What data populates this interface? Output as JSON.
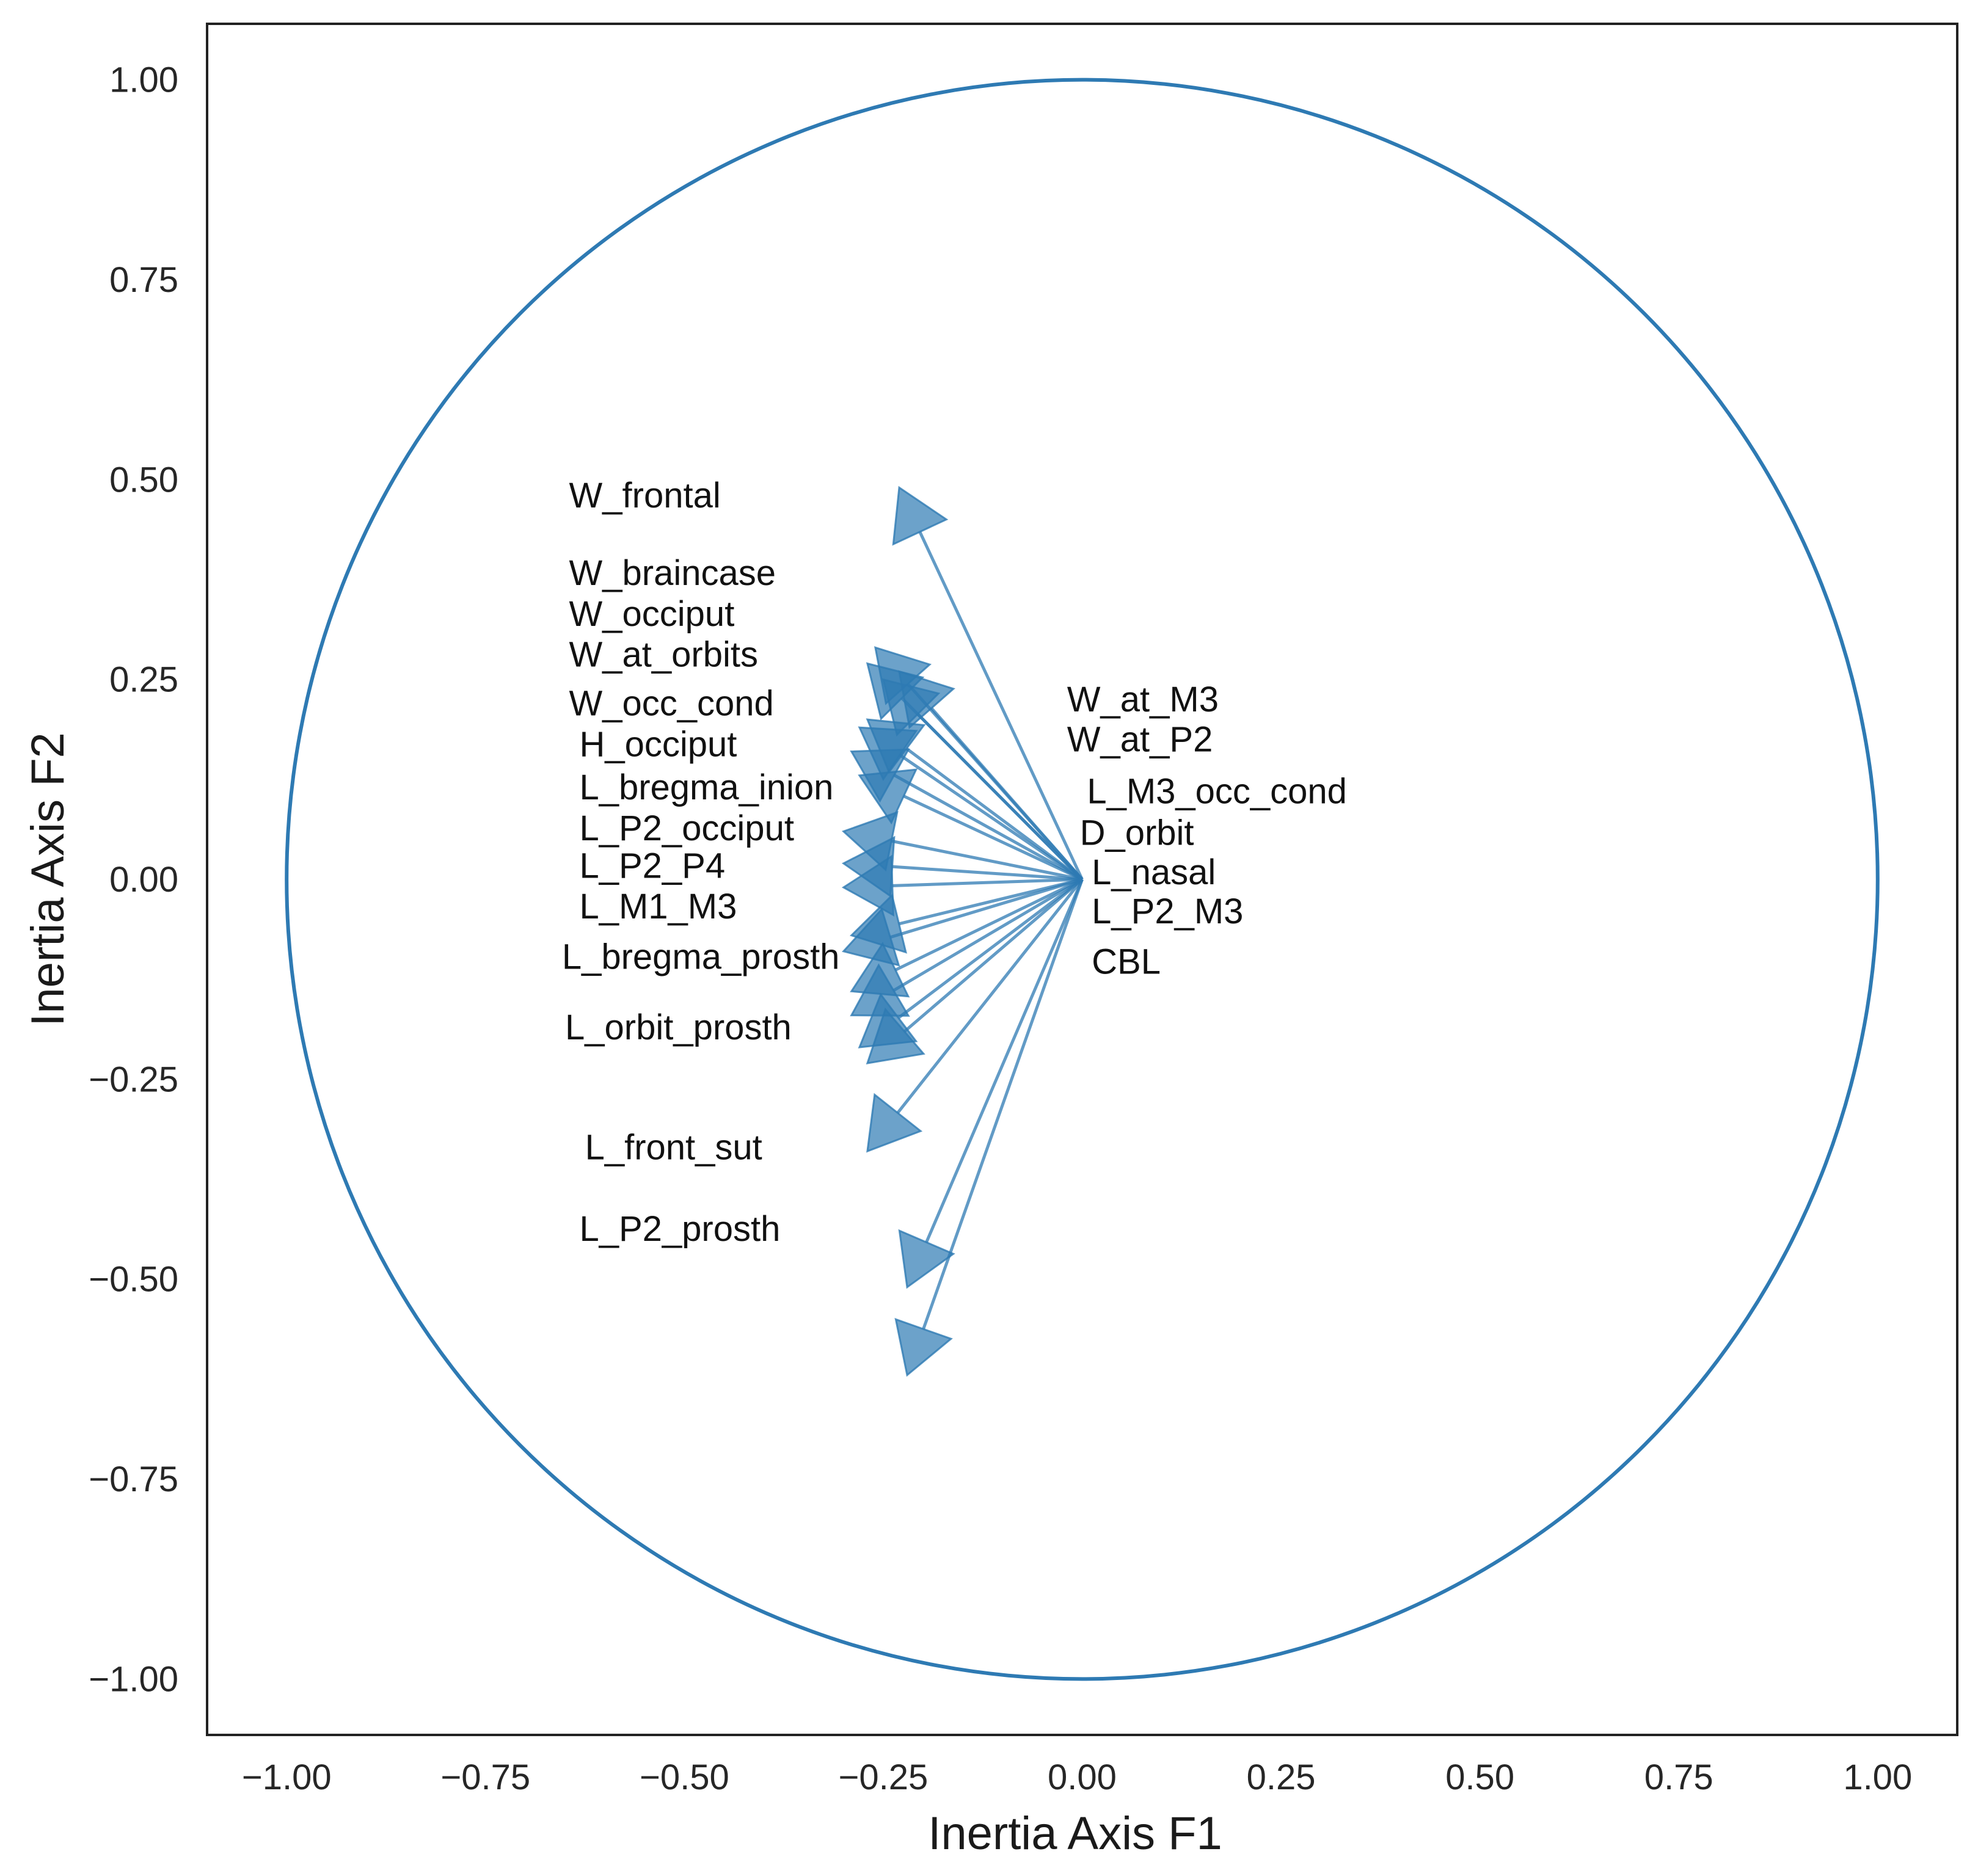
{
  "chart_data": {
    "type": "scatter",
    "subtype": "correlation-circle",
    "title": "",
    "xlabel": "Inertia Axis F1",
    "ylabel": "Inertia Axis F2",
    "xlim": [
      -1.1,
      1.1
    ],
    "ylim": [
      -1.07,
      1.07
    ],
    "xticks": [
      -1.0,
      -0.75,
      -0.5,
      -0.25,
      0.0,
      0.25,
      0.5,
      0.75,
      1.0
    ],
    "yticks": [
      1.0,
      0.75,
      0.5,
      0.25,
      0.0,
      -0.25,
      -0.5,
      -0.75,
      -1.0
    ],
    "xtick_labels": [
      "−1.00",
      "−0.75",
      "−0.50",
      "−0.25",
      "0.00",
      "0.25",
      "0.50",
      "0.75",
      "1.00"
    ],
    "ytick_labels": [
      "1.00",
      "0.75",
      "0.50",
      "0.25",
      "0.00",
      "−0.25",
      "−0.50",
      "−0.75",
      "−1.00"
    ],
    "grid": false,
    "unit_circle": true,
    "color": "#2e7ab3",
    "vectors": [
      {
        "name": "W_frontal",
        "x": -0.23,
        "y": 0.49
      },
      {
        "name": "W_braincase",
        "x": -0.26,
        "y": 0.29
      },
      {
        "name": "W_occiput",
        "x": -0.27,
        "y": 0.27
      },
      {
        "name": "W_at_orbits",
        "x": -0.25,
        "y": 0.25
      },
      {
        "name": "W_occ_cond",
        "x": -0.28,
        "y": 0.19
      },
      {
        "name": "H_occiput",
        "x": -0.29,
        "y": 0.16
      },
      {
        "name": "L_bregma_inion",
        "x": -0.28,
        "y": 0.13
      },
      {
        "name": "L_P2_occiput",
        "x": -0.3,
        "y": 0.06
      },
      {
        "name": "L_P2_P4",
        "x": -0.3,
        "y": 0.02
      },
      {
        "name": "L_M1_M3",
        "x": -0.3,
        "y": -0.01
      },
      {
        "name": "L_bregma_prosth",
        "x": -0.3,
        "y": -0.09
      },
      {
        "name": "L_orbit_prosth",
        "x": -0.29,
        "y": -0.17
      },
      {
        "name": "L_front_sut",
        "x": -0.27,
        "y": -0.34
      },
      {
        "name": "L_P2_prosth",
        "x": -0.22,
        "y": -0.51
      },
      {
        "name": "W_at_M3",
        "x": -0.29,
        "y": -0.14
      },
      {
        "name": "W_at_P2",
        "x": -0.28,
        "y": -0.21
      },
      {
        "name": "L_M3_occ_cond",
        "x": -0.27,
        "y": -0.23
      },
      {
        "name": "D_orbit",
        "x": -0.23,
        "y": 0.26
      },
      {
        "name": "L_nasal",
        "x": -0.27,
        "y": 0.2
      },
      {
        "name": "L_P2_M3",
        "x": -0.29,
        "y": -0.07
      },
      {
        "name": "CBL",
        "x": -0.22,
        "y": -0.62
      }
    ],
    "labels": [
      {
        "text": "W_frontal",
        "x": -0.645,
        "y": 0.465,
        "style": "sans"
      },
      {
        "text": "W_braincase",
        "x": -0.645,
        "y": 0.368,
        "style": "sans"
      },
      {
        "text": "W_occiput",
        "x": -0.645,
        "y": 0.317,
        "style": "sans"
      },
      {
        "text": "W_at_orbits",
        "x": -0.645,
        "y": 0.266,
        "style": "sans"
      },
      {
        "text": "W_occ_cond",
        "x": -0.645,
        "y": 0.205,
        "style": "sans"
      },
      {
        "text": "H_occiput",
        "x": -0.632,
        "y": 0.154,
        "style": "sans"
      },
      {
        "text": "L_bregma_inion",
        "x": -0.632,
        "y": 0.1,
        "style": "sans"
      },
      {
        "text": "L_P2_occiput",
        "x": -0.632,
        "y": 0.049,
        "style": "sans"
      },
      {
        "text": "L_P2_P4",
        "x": -0.632,
        "y": 0.002,
        "style": "sans"
      },
      {
        "text": "L_M1_M3",
        "x": -0.632,
        "y": -0.049,
        "style": "sans"
      },
      {
        "text": "L_bregma_prosth",
        "x": -0.654,
        "y": -0.112,
        "style": "sans"
      },
      {
        "text": "L_orbit_prosth",
        "x": -0.65,
        "y": -0.2,
        "style": "sans"
      },
      {
        "text": "L_front_sut",
        "x": -0.625,
        "y": -0.35,
        "style": "sans"
      },
      {
        "text": "L_P2_prosth",
        "x": -0.632,
        "y": -0.452,
        "style": "sans"
      },
      {
        "text": "W_at_M3",
        "x": -0.019,
        "y": 0.21,
        "style": "sans"
      },
      {
        "text": "W_at_P2",
        "x": -0.019,
        "y": 0.16,
        "style": "sans"
      },
      {
        "text": "L_M3_occ_cond",
        "x": 0.006,
        "y": 0.095,
        "style": "sans"
      },
      {
        "text": "D_orbit",
        "x": -0.003,
        "y": 0.043,
        "style": "sans"
      },
      {
        "text": "L_nasal",
        "x": 0.012,
        "y": -0.006,
        "style": "sans"
      },
      {
        "text": "L_P2_M3",
        "x": 0.012,
        "y": -0.055,
        "style": "sans"
      },
      {
        "text": "CBL",
        "x": 0.012,
        "y": -0.118,
        "style": "sans"
      }
    ]
  }
}
